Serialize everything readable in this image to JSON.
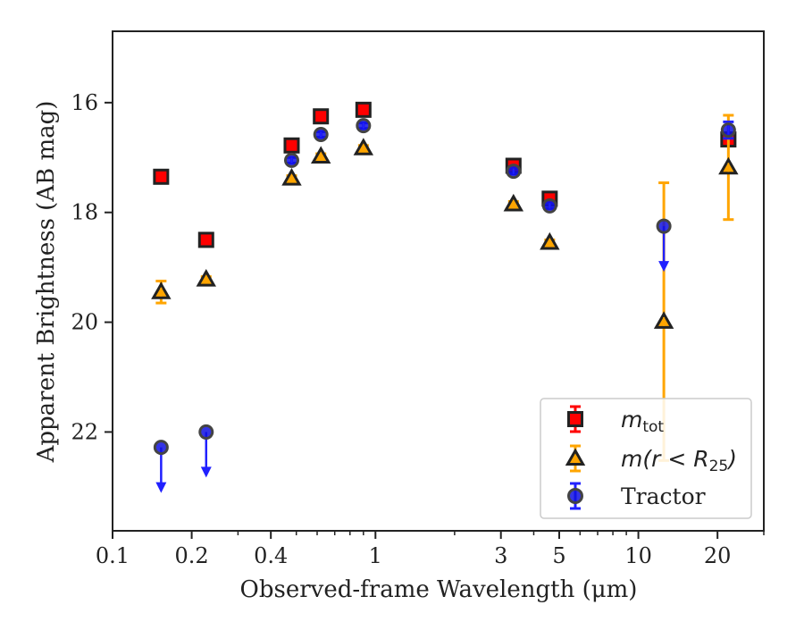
{
  "chart_data": {
    "type": "scatter",
    "xlabel": "Observed-frame Wavelength (μm)",
    "ylabel": "Apparent Brightness (AB mag)",
    "xscale": "log",
    "xlim": [
      0.1,
      30
    ],
    "ylim": [
      23.8,
      14.7
    ],
    "y_inverted": true,
    "x_ticks": [
      0.1,
      0.2,
      0.4,
      1,
      3,
      5,
      10,
      20
    ],
    "x_tick_labels": [
      "0.1",
      "0.2",
      "0.4",
      "1",
      "3",
      "5",
      "10",
      "20"
    ],
    "y_ticks": [
      16,
      18,
      20,
      22
    ],
    "y_tick_labels": [
      "16",
      "18",
      "20",
      "22"
    ],
    "legend_position": "lower-right",
    "series": [
      {
        "name": "m_tot",
        "label_main": "m",
        "label_sub": "tot",
        "marker": "square",
        "face_color": "#ff0000",
        "edge_color": "#222222",
        "err_color": "#ff0000",
        "points": [
          {
            "x": 0.153,
            "y": 17.35,
            "err": 0.05
          },
          {
            "x": 0.227,
            "y": 18.5,
            "err": 0.05
          },
          {
            "x": 0.48,
            "y": 16.78,
            "err": 0.05
          },
          {
            "x": 0.62,
            "y": 16.25,
            "err": 0.05
          },
          {
            "x": 0.9,
            "y": 16.13,
            "err": 0.05
          },
          {
            "x": 3.35,
            "y": 17.15,
            "err": 0.05
          },
          {
            "x": 4.6,
            "y": 17.75,
            "err": 0.05
          },
          {
            "x": 22,
            "y": 16.67,
            "err": 0.05
          }
        ]
      },
      {
        "name": "m(r<R_25)",
        "label_main": "m(r < R",
        "label_sub": "25",
        "label_tail": ")",
        "marker": "triangle",
        "face_color": "#ffa500",
        "edge_color": "#222222",
        "err_color": "#ffa500",
        "points": [
          {
            "x": 0.153,
            "y": 19.45,
            "err": 0.2
          },
          {
            "x": 0.227,
            "y": 19.22,
            "err": 0.05
          },
          {
            "x": 0.48,
            "y": 17.38,
            "err": 0.05
          },
          {
            "x": 0.62,
            "y": 16.98,
            "err": 0.05
          },
          {
            "x": 0.9,
            "y": 16.83,
            "err": 0.05
          },
          {
            "x": 3.35,
            "y": 17.85,
            "err": 0.05
          },
          {
            "x": 4.6,
            "y": 18.55,
            "err": 0.05
          },
          {
            "x": 12.5,
            "y": 19.99,
            "err": 2.53
          },
          {
            "x": 22,
            "y": 17.18,
            "err": 0.95
          }
        ]
      },
      {
        "name": "Tractor",
        "label_main": "Tractor",
        "marker": "circle",
        "face_color": "#1010e0",
        "edge_color": "#444444",
        "err_color": "#2020ff",
        "points": [
          {
            "x": 0.153,
            "y": 22.28,
            "upper_limit": true
          },
          {
            "x": 0.227,
            "y": 22.0,
            "upper_limit": true
          },
          {
            "x": 0.48,
            "y": 17.05,
            "err": 0.05
          },
          {
            "x": 0.62,
            "y": 16.58,
            "err": 0.05
          },
          {
            "x": 0.9,
            "y": 16.42,
            "err": 0.05
          },
          {
            "x": 3.35,
            "y": 17.25,
            "err": 0.05
          },
          {
            "x": 4.6,
            "y": 17.88,
            "err": 0.05
          },
          {
            "x": 12.5,
            "y": 18.25,
            "upper_limit": true
          },
          {
            "x": 22,
            "y": 16.5,
            "err": 0.15
          }
        ]
      }
    ]
  }
}
